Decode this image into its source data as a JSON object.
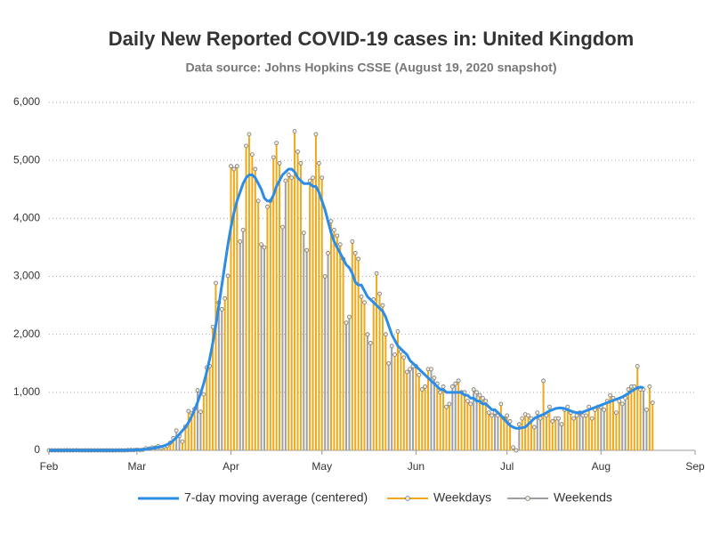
{
  "chart_data": {
    "type": "bar",
    "title": "Daily New Reported COVID-19 cases in: United Kingdom",
    "subtitle": "Data source: Johns Hopkins CSSE (August 19, 2020 snapshot)",
    "ylim": [
      0,
      6000
    ],
    "yticks": [
      0,
      {
        "value": 1000,
        "label": "1,000"
      },
      {
        "value": 2000,
        "label": "2,000"
      },
      {
        "value": 3000,
        "label": "3,000"
      },
      {
        "value": 4000,
        "label": "4,000"
      },
      {
        "value": 5000,
        "label": "5,000"
      },
      {
        "value": 6000,
        "label": "6,000"
      }
    ],
    "grid": true,
    "legend": "bottom",
    "categories": [
      "Feb",
      null,
      null,
      null,
      null,
      null,
      null,
      null,
      null,
      null,
      null,
      null,
      null,
      null,
      null,
      null,
      null,
      null,
      null,
      null,
      null,
      null,
      null,
      null,
      null,
      null,
      null,
      null,
      null,
      "Mar",
      null,
      null,
      null,
      null,
      null,
      null,
      null,
      null,
      null,
      null,
      null,
      null,
      null,
      null,
      null,
      null,
      null,
      null,
      null,
      null,
      null,
      null,
      null,
      null,
      null,
      null,
      null,
      null,
      null,
      null,
      "Apr",
      null,
      null,
      null,
      null,
      null,
      null,
      null,
      null,
      null,
      null,
      null,
      null,
      null,
      null,
      null,
      null,
      null,
      null,
      null,
      null,
      null,
      null,
      null,
      null,
      null,
      null,
      null,
      null,
      null,
      "May",
      null,
      null,
      null,
      null,
      null,
      null,
      null,
      null,
      null,
      null,
      null,
      null,
      null,
      null,
      null,
      null,
      null,
      null,
      null,
      null,
      null,
      null,
      null,
      null,
      null,
      null,
      null,
      null,
      null,
      null,
      "Jun",
      null,
      null,
      null,
      null,
      null,
      null,
      null,
      null,
      null,
      null,
      null,
      null,
      null,
      null,
      null,
      null,
      null,
      null,
      null,
      null,
      null,
      null,
      null,
      null,
      null,
      null,
      null,
      null,
      null,
      "Jul",
      null,
      null,
      null,
      null,
      null,
      null,
      null,
      null,
      null,
      null,
      null,
      null,
      null,
      null,
      null,
      null,
      null,
      null,
      null,
      null,
      null,
      null,
      null,
      null,
      null,
      null,
      null,
      null,
      null,
      null,
      "Aug",
      null,
      null,
      null,
      null,
      null,
      null,
      null,
      null,
      null,
      null,
      null,
      null,
      null,
      null,
      null,
      null,
      null,
      null,
      null,
      null,
      null,
      null,
      null,
      null,
      null,
      null,
      null,
      null,
      null,
      null,
      "Sep"
    ],
    "series": [
      {
        "name": "7-day moving average (centered)",
        "type": "line",
        "color": "#2b8de6",
        "values": [
          0,
          0,
          0,
          0,
          0,
          0,
          0,
          0,
          0,
          0,
          0,
          0,
          0,
          0,
          0,
          0,
          0,
          0,
          0,
          0,
          0,
          0,
          0,
          1,
          1,
          2,
          2,
          3,
          5,
          7,
          10,
          14,
          20,
          27,
          35,
          45,
          55,
          65,
          80,
          100,
          130,
          170,
          220,
          280,
          340,
          400,
          480,
          580,
          700,
          830,
          980,
          1150,
          1350,
          1580,
          1850,
          2150,
          2500,
          2850,
          3200,
          3550,
          3850,
          4100,
          4300,
          4450,
          4600,
          4700,
          4750,
          4750,
          4700,
          4600,
          4500,
          4350,
          4300,
          4300,
          4400,
          4550,
          4650,
          4750,
          4800,
          4850,
          4850,
          4800,
          4700,
          4650,
          4600,
          4600,
          4600,
          4550,
          4550,
          4450,
          4300,
          4150,
          3950,
          3750,
          3600,
          3500,
          3400,
          3300,
          3200,
          3150,
          3050,
          2900,
          2850,
          2850,
          2750,
          2650,
          2600,
          2550,
          2500,
          2450,
          2400,
          2300,
          2150,
          2000,
          1900,
          1800,
          1750,
          1700,
          1650,
          1550,
          1500,
          1450,
          1400,
          1350,
          1300,
          1250,
          1200,
          1150,
          1100,
          1050,
          1050,
          1000,
          1000,
          1000,
          1000,
          1000,
          1000,
          950,
          950,
          900,
          900,
          850,
          850,
          800,
          800,
          750,
          700,
          700,
          650,
          600,
          550,
          480,
          430,
          400,
          380,
          380,
          390,
          400,
          450,
          500,
          550,
          580,
          600,
          620,
          650,
          680,
          700,
          720,
          730,
          730,
          720,
          700,
          680,
          660,
          650,
          650,
          660,
          680,
          700,
          720,
          740,
          760,
          780,
          800,
          820,
          840,
          860,
          880,
          900,
          920,
          950,
          980,
          1020,
          1050,
          1080,
          1090,
          1080,
          null,
          null,
          null,
          null,
          null,
          null,
          null,
          null,
          null,
          null,
          null,
          null,
          null,
          null,
          null,
          null,
          null
        ]
      },
      {
        "name": "Weekdays",
        "type": "bar",
        "color": "#f0a818",
        "values": [
          null,
          null,
          0,
          0,
          0,
          0,
          1,
          null,
          null,
          1,
          0,
          0,
          0,
          0,
          null,
          null,
          0,
          0,
          0,
          0,
          0,
          null,
          null,
          0,
          0,
          0,
          3,
          5,
          null,
          null,
          4,
          11,
          34,
          29,
          48,
          null,
          null,
          43,
          62,
          77,
          130,
          208,
          null,
          null,
          152,
          407,
          676,
          643,
          714,
          null,
          null,
          967,
          1427,
          1452,
          2129,
          2885,
          null,
          null,
          2619,
          3009,
          4900,
          4850,
          4900,
          null,
          null,
          5250,
          5450,
          5100,
          4850,
          4300,
          null,
          null,
          4200,
          4300,
          5050,
          5300,
          4950,
          null,
          null,
          4750,
          4700,
          5500,
          5150,
          4950,
          null,
          null,
          4650,
          4700,
          5450,
          4950,
          4700,
          null,
          null,
          3950,
          3800,
          3700,
          3550,
          3300,
          null,
          null,
          3600,
          3400,
          3300,
          2650,
          2550,
          null,
          null,
          2600,
          3050,
          2700,
          2500,
          2000,
          null,
          null,
          1650,
          2050,
          1700,
          1600,
          1350,
          null,
          null,
          1450,
          1300,
          1050,
          1100,
          1400,
          null,
          null,
          1150,
          1000,
          1100,
          750,
          800,
          null,
          null,
          1200,
          1000,
          1000,
          850,
          800,
          null,
          null,
          950,
          900,
          850,
          650,
          600,
          null,
          null,
          800,
          550,
          600,
          500,
          50,
          null,
          null,
          550,
          620,
          600,
          550,
          400,
          null,
          null,
          1200,
          600,
          750,
          500,
          550,
          null,
          null,
          700,
          750,
          650,
          550,
          600,
          null,
          null,
          600,
          750,
          550,
          700,
          750,
          null,
          null,
          850,
          950,
          900,
          650,
          850,
          null,
          null,
          1050,
          1100,
          1100,
          1450,
          1050,
          null,
          null,
          1100,
          820,
          null,
          null,
          null,
          null,
          null,
          null,
          null,
          null,
          null,
          null,
          null,
          null,
          null,
          null
        ]
      },
      {
        "name": "Weekends",
        "type": "bar",
        "color": "#a0a0a0",
        "values": [
          0,
          0,
          null,
          null,
          null,
          null,
          null,
          0,
          0,
          null,
          null,
          null,
          null,
          null,
          0,
          0,
          null,
          null,
          null,
          null,
          null,
          0,
          0,
          null,
          null,
          null,
          null,
          null,
          3,
          12,
          null,
          null,
          null,
          null,
          null,
          45,
          69,
          null,
          null,
          null,
          null,
          null,
          342,
          251,
          null,
          null,
          null,
          null,
          null,
          1035,
          665,
          null,
          null,
          null,
          null,
          null,
          2546,
          2433,
          null,
          null,
          null,
          null,
          null,
          3600,
          3800,
          null,
          null,
          null,
          null,
          null,
          3550,
          3500,
          null,
          null,
          null,
          null,
          null,
          3850,
          4650,
          null,
          null,
          null,
          null,
          null,
          3750,
          3450,
          null,
          null,
          null,
          null,
          null,
          3000,
          3400,
          null,
          null,
          null,
          null,
          null,
          2200,
          2300,
          null,
          null,
          null,
          null,
          null,
          2000,
          1850,
          null,
          null,
          null,
          null,
          null,
          1500,
          1800,
          null,
          null,
          null,
          null,
          null,
          1400,
          1450,
          null,
          null,
          null,
          null,
          null,
          1400,
          1250,
          null,
          null,
          null,
          null,
          null,
          1100,
          1150,
          null,
          null,
          null,
          null,
          null,
          1050,
          1000,
          null,
          null,
          null,
          null,
          null,
          650,
          600,
          null,
          null,
          null,
          null,
          null,
          0,
          450,
          null,
          null,
          null,
          null,
          null,
          650,
          550,
          null,
          null,
          null,
          null,
          null,
          550,
          450,
          null,
          null,
          null,
          null,
          null,
          650,
          600,
          null,
          null,
          null,
          null,
          null,
          750,
          700,
          null,
          null,
          null,
          null,
          null,
          800,
          900,
          null,
          null,
          null,
          null,
          null,
          1050,
          700,
          null,
          null,
          null,
          null,
          null,
          null,
          null,
          null,
          null,
          null,
          null,
          null,
          null,
          null,
          null,
          null
        ]
      }
    ]
  }
}
